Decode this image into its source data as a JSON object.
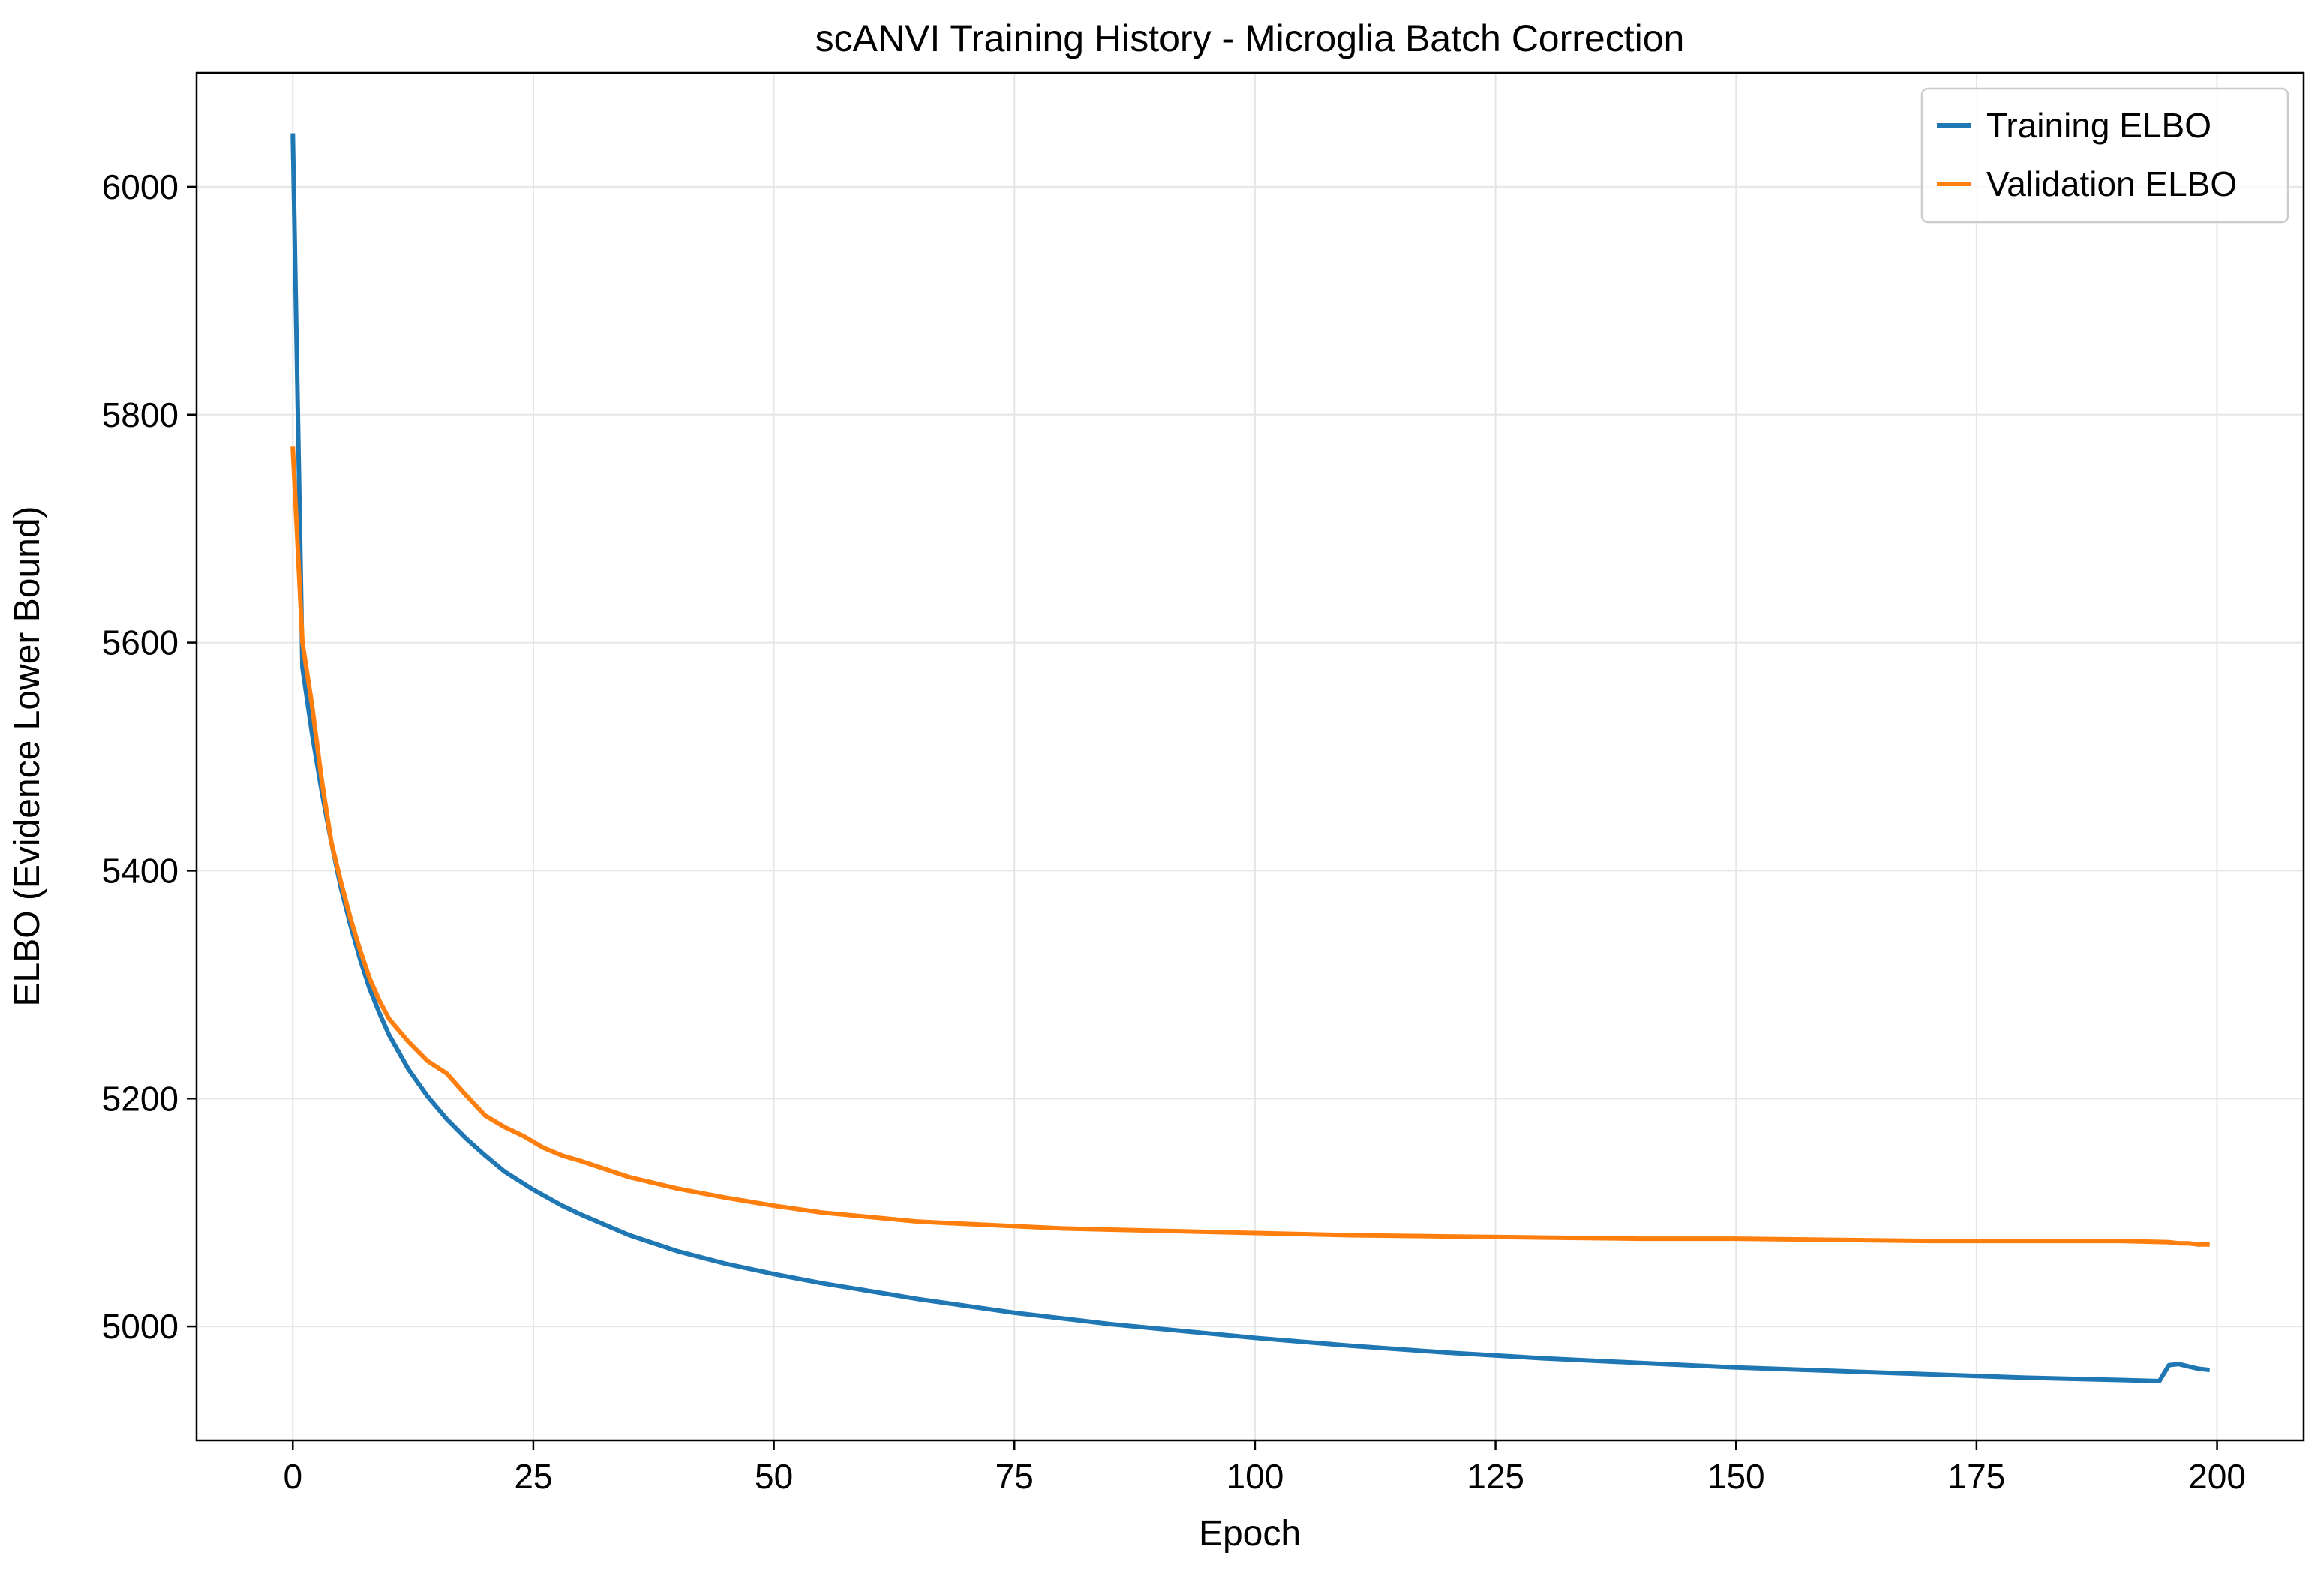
{
  "chart_data": {
    "type": "line",
    "title": "scANVI Training History - Microglia Batch Correction",
    "xlabel": "Epoch",
    "ylabel": "ELBO (Evidence Lower Bound)",
    "xlim": [
      -10,
      209
    ],
    "ylim": [
      4900,
      6100
    ],
    "xticks": [
      0,
      25,
      50,
      75,
      100,
      125,
      150,
      175,
      200
    ],
    "yticks": [
      5000,
      5200,
      5400,
      5600,
      5800,
      6000
    ],
    "grid": true,
    "legend": "top-right",
    "series": [
      {
        "name": "Training ELBO",
        "color": "#1f77b4",
        "x": [
          0,
          1,
          2,
          3,
          4,
          5,
          6,
          7,
          8,
          9,
          10,
          12,
          14,
          16,
          18,
          20,
          22,
          25,
          28,
          30,
          35,
          40,
          45,
          50,
          55,
          60,
          65,
          70,
          75,
          80,
          85,
          90,
          95,
          100,
          110,
          120,
          130,
          140,
          150,
          160,
          170,
          180,
          190,
          194,
          195,
          196,
          197,
          198,
          199
        ],
        "y": [
          6045,
          5578,
          5520,
          5470,
          5425,
          5385,
          5352,
          5322,
          5296,
          5275,
          5256,
          5226,
          5202,
          5182,
          5165,
          5150,
          5136,
          5120,
          5106,
          5098,
          5080,
          5066,
          5055,
          5046,
          5038,
          5031,
          5024,
          5018,
          5012,
          5007,
          5002,
          4998,
          4994,
          4990,
          4983,
          4977,
          4972,
          4968,
          4964,
          4961,
          4958,
          4955,
          4953,
          4952,
          4966,
          4967,
          4965,
          4963,
          4962
        ]
      },
      {
        "name": "Validation ELBO",
        "color": "#ff7f0e",
        "x": [
          0,
          1,
          2,
          3,
          4,
          5,
          6,
          7,
          8,
          9,
          10,
          12,
          14,
          16,
          18,
          20,
          22,
          24,
          26,
          28,
          30,
          35,
          40,
          45,
          50,
          55,
          60,
          65,
          70,
          75,
          80,
          85,
          90,
          95,
          100,
          105,
          110,
          120,
          130,
          140,
          150,
          160,
          170,
          180,
          190,
          195,
          196,
          197,
          198,
          199
        ],
        "y": [
          5770,
          5600,
          5545,
          5480,
          5425,
          5390,
          5358,
          5330,
          5305,
          5286,
          5270,
          5250,
          5233,
          5222,
          5203,
          5185,
          5175,
          5167,
          5157,
          5150,
          5145,
          5131,
          5121,
          5113,
          5106,
          5100,
          5096,
          5092,
          5090,
          5088,
          5086,
          5085,
          5084,
          5083,
          5082,
          5081,
          5080,
          5079,
          5078,
          5077,
          5077,
          5076,
          5075,
          5075,
          5075,
          5074,
          5073,
          5073,
          5072,
          5072
        ]
      }
    ]
  }
}
